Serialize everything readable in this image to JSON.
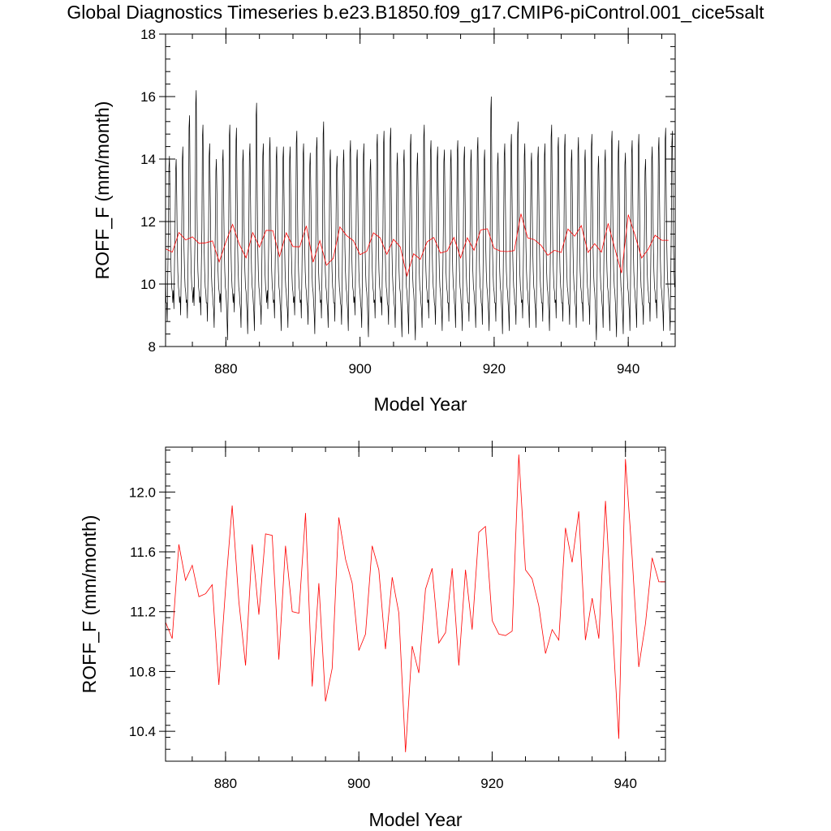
{
  "title": "Global Diagnostics Timeseries b.e23.B1850.f09_g17.CMIP6-piControl.001_cice5salt",
  "colors": {
    "monthly": "#000000",
    "annual": "#ff0000",
    "axes": "#000000"
  },
  "chart_data": [
    {
      "type": "line",
      "xlabel": "Model Year",
      "ylabel": "ROFF_F (mm/month)",
      "xlim": [
        871,
        947
      ],
      "ylim": [
        8,
        18
      ],
      "xticks": [
        "880",
        "900",
        "920",
        "940"
      ],
      "yticks": [
        "8",
        "10",
        "12",
        "14",
        "16",
        "18"
      ],
      "monthly_peaks": [
        14.1,
        14.0,
        14.4,
        15.4,
        16.2,
        15.1,
        14.5,
        14.0,
        14.3,
        15.1,
        15.0,
        14.3,
        14.5,
        15.8,
        14.5,
        14.7,
        14.4,
        14.4,
        14.4,
        14.9,
        14.5,
        14.2,
        14.7,
        15.2,
        14.3,
        14.1,
        14.3,
        14.6,
        14.3,
        14.5,
        14.0,
        14.8,
        14.9,
        15.0,
        14.2,
        14.3,
        14.8,
        14.2,
        15.1,
        14.6,
        14.4,
        14.3,
        14.3,
        14.6,
        14.4,
        14.3,
        14.7,
        14.3,
        16.0,
        14.2,
        14.5,
        14.8,
        15.2,
        14.5,
        14.2,
        14.4,
        14.5,
        15.1,
        14.7,
        14.8,
        14.3,
        14.7,
        14.3,
        14.8,
        14.1,
        14.3,
        14.9,
        14.6,
        14.2,
        14.6,
        14.8,
        14.0,
        14.4,
        14.7,
        15.0,
        14.9
      ],
      "monthly_troughs": [
        8.8,
        9.2,
        9.0,
        8.9,
        9.3,
        9.0,
        8.8,
        8.6,
        9.1,
        8.2,
        9.1,
        8.6,
        8.4,
        8.5,
        8.7,
        9.2,
        8.9,
        8.5,
        8.6,
        9.0,
        8.9,
        8.7,
        8.4,
        8.9,
        8.6,
        8.8,
        8.7,
        8.5,
        9.0,
        8.6,
        8.3,
        8.9,
        9.0,
        8.7,
        8.6,
        8.3,
        8.4,
        8.2,
        8.6,
        8.9,
        8.7,
        8.5,
        8.8,
        8.6,
        8.5,
        8.8,
        8.6,
        8.7,
        8.5,
        8.8,
        8.4,
        8.5,
        8.7,
        8.9,
        8.6,
        8.6,
        8.8,
        8.5,
        8.9,
        8.8,
        8.7,
        8.6,
        8.8,
        8.7,
        8.2,
        8.6,
        8.5,
        8.3,
        8.4,
        8.5,
        8.6,
        8.7,
        8.8,
        8.9,
        8.5,
        8.5
      ],
      "series": [
        {
          "x": [
            871,
            872,
            873,
            874,
            875,
            876,
            877,
            878,
            879,
            880,
            881,
            882,
            883,
            884,
            885,
            886,
            887,
            888,
            889,
            890,
            891,
            892,
            893,
            894,
            895,
            896,
            897,
            898,
            899,
            900,
            901,
            902,
            903,
            904,
            905,
            906,
            907,
            908,
            909,
            910,
            911,
            912,
            913,
            914,
            915,
            916,
            917,
            918,
            919,
            920,
            921,
            922,
            923,
            924,
            925,
            926,
            927,
            928,
            929,
            930,
            931,
            932,
            933,
            934,
            935,
            936,
            937,
            938,
            939,
            940,
            941,
            942,
            943,
            944,
            945,
            946
          ],
          "values": [
            11.13,
            11.02,
            11.65,
            11.41,
            11.51,
            11.3,
            11.32,
            11.38,
            10.71,
            11.35,
            11.91,
            11.27,
            10.84,
            11.65,
            11.18,
            11.72,
            11.71,
            10.88,
            11.64,
            11.2,
            11.19,
            11.86,
            10.7,
            11.39,
            10.6,
            10.82,
            11.83,
            11.55,
            11.39,
            10.94,
            11.05,
            11.64,
            11.48,
            10.95,
            11.43,
            11.19,
            10.26,
            10.97,
            10.79,
            11.35,
            11.49,
            10.99,
            11.06,
            11.49,
            10.84,
            11.48,
            11.08,
            11.73,
            11.77,
            11.14,
            11.05,
            11.04,
            11.07,
            12.25,
            11.48,
            11.42,
            11.24,
            10.92,
            11.08,
            11.01,
            11.76,
            11.53,
            11.87,
            11.01,
            11.29,
            11.02,
            11.94,
            11.14,
            10.35,
            12.22,
            11.57,
            10.83,
            11.12,
            11.56,
            11.4,
            11.4
          ]
        }
      ]
    },
    {
      "type": "line",
      "xlabel": "Model Year",
      "ylabel": "ROFF_F (mm/month)",
      "xlim": [
        871,
        946
      ],
      "ylim": [
        10.2,
        12.3
      ],
      "xticks": [
        "880",
        "900",
        "920",
        "940"
      ],
      "yticks": [
        "10.4",
        "10.8",
        "11.2",
        "11.6",
        "12.0"
      ],
      "series": [
        {
          "x": [
            871,
            872,
            873,
            874,
            875,
            876,
            877,
            878,
            879,
            880,
            881,
            882,
            883,
            884,
            885,
            886,
            887,
            888,
            889,
            890,
            891,
            892,
            893,
            894,
            895,
            896,
            897,
            898,
            899,
            900,
            901,
            902,
            903,
            904,
            905,
            906,
            907,
            908,
            909,
            910,
            911,
            912,
            913,
            914,
            915,
            916,
            917,
            918,
            919,
            920,
            921,
            922,
            923,
            924,
            925,
            926,
            927,
            928,
            929,
            930,
            931,
            932,
            933,
            934,
            935,
            936,
            937,
            938,
            939,
            940,
            941,
            942,
            943,
            944,
            945,
            946
          ],
          "values": [
            11.13,
            11.02,
            11.65,
            11.41,
            11.51,
            11.3,
            11.32,
            11.38,
            10.71,
            11.35,
            11.91,
            11.27,
            10.84,
            11.65,
            11.18,
            11.72,
            11.71,
            10.88,
            11.64,
            11.2,
            11.19,
            11.86,
            10.7,
            11.39,
            10.6,
            10.82,
            11.83,
            11.55,
            11.39,
            10.94,
            11.05,
            11.64,
            11.48,
            10.95,
            11.43,
            11.19,
            10.26,
            10.97,
            10.79,
            11.35,
            11.49,
            10.99,
            11.06,
            11.49,
            10.84,
            11.48,
            11.08,
            11.73,
            11.77,
            11.14,
            11.05,
            11.04,
            11.07,
            12.25,
            11.48,
            11.42,
            11.24,
            10.92,
            11.08,
            11.01,
            11.76,
            11.53,
            11.87,
            11.01,
            11.29,
            11.02,
            11.94,
            11.14,
            10.35,
            12.22,
            11.57,
            10.83,
            11.12,
            11.56,
            11.4,
            11.4
          ]
        }
      ]
    }
  ]
}
